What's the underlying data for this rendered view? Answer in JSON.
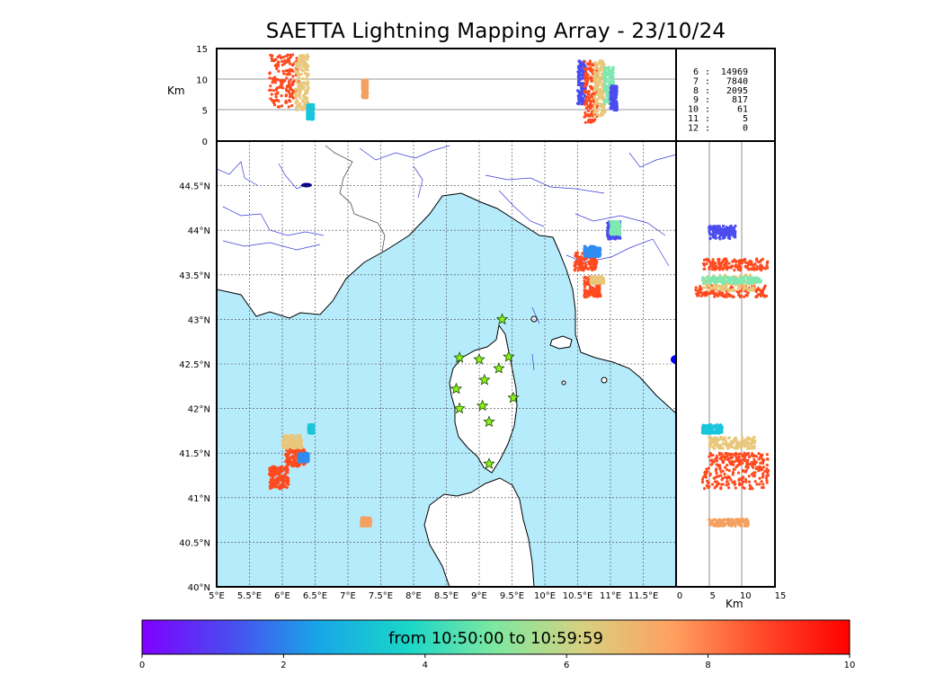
{
  "title": "SAETTA Lightning Mapping Array - 23/10/24",
  "chart_data": [
    {
      "type": "scatter",
      "panel": "altitude-longitude",
      "ylabel": "Km",
      "ylim": [
        0,
        15
      ],
      "xlim": [
        5,
        12
      ],
      "yticks": [
        "0",
        "5",
        "10",
        "15"
      ],
      "clusters": [
        {
          "lon": [
            5.8,
            6.25
          ],
          "alt": [
            5.5,
            14
          ],
          "color": "#ff4a1f"
        },
        {
          "lon": [
            6.2,
            6.4
          ],
          "alt": [
            5,
            14
          ],
          "color": "#e9c77a"
        },
        {
          "lon": [
            6.38,
            6.48
          ],
          "alt": [
            3.5,
            6
          ],
          "color": "#19c6dc"
        },
        {
          "lon": [
            7.22,
            7.3
          ],
          "alt": [
            7,
            10
          ],
          "color": "#f4a060"
        },
        {
          "lon": [
            10.5,
            10.62
          ],
          "alt": [
            6,
            13
          ],
          "color": "#4a4cf0"
        },
        {
          "lon": [
            10.6,
            10.8
          ],
          "alt": [
            3,
            13
          ],
          "color": "#ff4a1f"
        },
        {
          "lon": [
            10.75,
            10.92
          ],
          "alt": [
            4,
            13
          ],
          "color": "#e9c77a"
        },
        {
          "lon": [
            10.9,
            11.05
          ],
          "alt": [
            6,
            12
          ],
          "color": "#7fe8b0"
        },
        {
          "lon": [
            11.0,
            11.1
          ],
          "alt": [
            5,
            9
          ],
          "color": "#4a4cf0"
        }
      ]
    },
    {
      "type": "scatter",
      "panel": "map",
      "xlim": [
        5,
        12
      ],
      "ylim": [
        40,
        45
      ],
      "xticks": [
        "5°E",
        "5.5°E",
        "6°E",
        "6.5°E",
        "7°E",
        "7.5°E",
        "8°E",
        "8.5°E",
        "9°E",
        "9.5°E",
        "10°E",
        "10.5°E",
        "11°E",
        "11.5°E"
      ],
      "yticks": [
        "40°N",
        "40.5°N",
        "41°N",
        "41.5°N",
        "42°N",
        "42.5°N",
        "43°N",
        "43.5°N",
        "44°N",
        "44.5°N"
      ],
      "grid": true,
      "stations": [
        {
          "lon": 9.35,
          "lat": 43.0
        },
        {
          "lon": 8.7,
          "lat": 42.57
        },
        {
          "lon": 9.0,
          "lat": 42.55
        },
        {
          "lon": 9.45,
          "lat": 42.58
        },
        {
          "lon": 9.3,
          "lat": 42.45
        },
        {
          "lon": 9.08,
          "lat": 42.32
        },
        {
          "lon": 8.65,
          "lat": 42.22
        },
        {
          "lon": 9.52,
          "lat": 42.12
        },
        {
          "lon": 8.7,
          "lat": 42.0
        },
        {
          "lon": 9.05,
          "lat": 42.03
        },
        {
          "lon": 9.15,
          "lat": 41.85
        },
        {
          "lon": 9.15,
          "lat": 41.38
        }
      ],
      "clusters": [
        {
          "lon": [
            5.8,
            6.1
          ],
          "lat": [
            41.1,
            41.35
          ],
          "color": "#ff4a1f"
        },
        {
          "lon": [
            6.05,
            6.35
          ],
          "lat": [
            41.35,
            41.55
          ],
          "color": "#ff4a1f"
        },
        {
          "lon": [
            6.0,
            6.3
          ],
          "lat": [
            41.55,
            41.7
          ],
          "color": "#e9c77a"
        },
        {
          "lon": [
            6.25,
            6.4
          ],
          "lat": [
            41.4,
            41.5
          ],
          "color": "#2f8cf0"
        },
        {
          "lon": [
            6.4,
            6.48
          ],
          "lat": [
            41.72,
            41.82
          ],
          "color": "#19c6dc"
        },
        {
          "lon": [
            7.2,
            7.35
          ],
          "lat": [
            40.68,
            40.78
          ],
          "color": "#f4a060"
        },
        {
          "lon": [
            10.45,
            10.8
          ],
          "lat": [
            43.55,
            43.75
          ],
          "color": "#ff4a1f"
        },
        {
          "lon": [
            10.6,
            10.85
          ],
          "lat": [
            43.7,
            43.82
          ],
          "color": "#2f8cf0"
        },
        {
          "lon": [
            10.6,
            10.85
          ],
          "lat": [
            43.25,
            43.48
          ],
          "color": "#ff4a1f"
        },
        {
          "lon": [
            10.7,
            10.9
          ],
          "lat": [
            43.4,
            43.48
          ],
          "color": "#e9c77a"
        },
        {
          "lon": [
            10.95,
            11.15
          ],
          "lat": [
            43.9,
            44.1
          ],
          "color": "#4a4cf0"
        },
        {
          "lon": [
            11.0,
            11.15
          ],
          "lat": [
            43.95,
            44.1
          ],
          "color": "#7fe8b0"
        }
      ]
    },
    {
      "type": "scatter",
      "panel": "latitude-altitude",
      "xlabel": "Km",
      "xlim": [
        0,
        15
      ],
      "xticks": [
        "0",
        "5",
        "10",
        "15"
      ],
      "clusters": [
        {
          "alt": [
            4,
            14
          ],
          "lat": [
            43.55,
            43.68
          ],
          "color": "#ff4a1f"
        },
        {
          "alt": [
            3,
            14
          ],
          "lat": [
            43.25,
            43.38
          ],
          "color": "#ff4a1f"
        },
        {
          "alt": [
            4,
            12
          ],
          "lat": [
            43.32,
            43.5
          ],
          "color": "#e9c77a"
        },
        {
          "alt": [
            4,
            13
          ],
          "lat": [
            43.4,
            43.48
          ],
          "color": "#7fe8b0"
        },
        {
          "alt": [
            5,
            9
          ],
          "lat": [
            43.9,
            44.05
          ],
          "color": "#4a4cf0"
        },
        {
          "alt": [
            4,
            14
          ],
          "lat": [
            41.1,
            41.35
          ],
          "color": "#ff4a1f"
        },
        {
          "alt": [
            5,
            14
          ],
          "lat": [
            41.35,
            41.5
          ],
          "color": "#ff4a1f"
        },
        {
          "alt": [
            5,
            12
          ],
          "lat": [
            41.55,
            41.68
          ],
          "color": "#e9c77a"
        },
        {
          "alt": [
            4,
            7
          ],
          "lat": [
            41.72,
            41.82
          ],
          "color": "#19c6dc"
        },
        {
          "alt": [
            5,
            11
          ],
          "lat": [
            40.68,
            40.76
          ],
          "color": "#f4a060"
        }
      ]
    }
  ],
  "station_counts": [
    {
      "stations": "6",
      "count": "14969",
      "highlight": false
    },
    {
      "stations": "7",
      "count": "7840",
      "highlight": true
    },
    {
      "stations": "8",
      "count": "2095",
      "highlight": false
    },
    {
      "stations": "9",
      "count": "817",
      "highlight": false
    },
    {
      "stations": "10",
      "count": "61",
      "highlight": false
    },
    {
      "stations": "11",
      "count": "5",
      "highlight": false
    },
    {
      "stations": "12",
      "count": "0",
      "highlight": false
    }
  ],
  "colorbar": {
    "label": "from 10:50:00 to 10:59:59",
    "ticks": [
      "0",
      "2",
      "4",
      "6",
      "8",
      "10"
    ],
    "colors": [
      "#7f00ff",
      "#4a4cf0",
      "#19a6e8",
      "#19d6c8",
      "#7fe8a0",
      "#d8d080",
      "#ffa060",
      "#ff4a2a",
      "#ff0000"
    ]
  }
}
